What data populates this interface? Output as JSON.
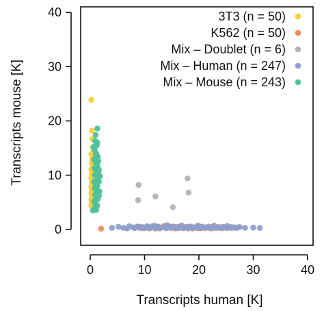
{
  "chart_data": {
    "type": "scatter",
    "title": "",
    "xlabel": "Transcripts human [K]",
    "ylabel": "Transcripts mouse [K]",
    "xlim": [
      0,
      40
    ],
    "ylim": [
      0,
      40
    ],
    "xticks": [
      "0",
      "10",
      "20",
      "30",
      "40"
    ],
    "yticks": [
      "0",
      "10",
      "20",
      "30",
      "40"
    ],
    "grid": false,
    "legend_position": "top-right",
    "series": [
      {
        "name": "3T3 (n = 50)",
        "color": "#f2d13b",
        "points": [
          [
            0.2,
            23.9
          ],
          [
            0.3,
            18.2
          ],
          [
            0.4,
            16.7
          ],
          [
            0.5,
            15.1
          ],
          [
            0.6,
            14.8
          ],
          [
            0.2,
            13.9
          ],
          [
            0.4,
            13.1
          ],
          [
            0.7,
            12.9
          ],
          [
            0.5,
            12.4
          ],
          [
            0.3,
            12.1
          ],
          [
            0.6,
            11.7
          ],
          [
            0.8,
            11.4
          ],
          [
            0.2,
            11.1
          ],
          [
            0.4,
            10.8
          ],
          [
            0.6,
            10.5
          ],
          [
            0.3,
            10.2
          ],
          [
            0.5,
            10.0
          ],
          [
            0.7,
            9.8
          ],
          [
            0.2,
            9.5
          ],
          [
            0.4,
            9.3
          ],
          [
            0.8,
            9.1
          ],
          [
            0.5,
            8.9
          ],
          [
            0.3,
            8.7
          ],
          [
            0.6,
            8.5
          ],
          [
            0.4,
            8.3
          ],
          [
            0.7,
            8.1
          ],
          [
            0.2,
            7.9
          ],
          [
            0.5,
            7.7
          ],
          [
            0.3,
            7.5
          ],
          [
            0.6,
            7.3
          ],
          [
            0.4,
            7.1
          ],
          [
            0.8,
            6.9
          ],
          [
            0.2,
            6.7
          ],
          [
            0.5,
            6.5
          ],
          [
            0.7,
            6.3
          ],
          [
            0.3,
            6.1
          ],
          [
            0.6,
            5.9
          ],
          [
            0.4,
            5.7
          ],
          [
            0.2,
            5.5
          ],
          [
            0.5,
            5.3
          ],
          [
            0.7,
            5.1
          ],
          [
            0.3,
            4.9
          ],
          [
            0.6,
            4.7
          ],
          [
            0.4,
            4.5
          ],
          [
            0.2,
            4.3
          ],
          [
            0.5,
            10.9
          ],
          [
            0.3,
            12.6
          ],
          [
            0.6,
            13.5
          ],
          [
            0.4,
            9.6
          ],
          [
            0.7,
            7.6
          ]
        ]
      },
      {
        "name": "K562 (n = 50)",
        "color": "#f08a5d",
        "points": [
          [
            2.0,
            0.15
          ],
          [
            8.1,
            0.35
          ],
          [
            9.0,
            0.55
          ],
          [
            9.7,
            0.25
          ],
          [
            10.3,
            0.45
          ],
          [
            10.9,
            0.2
          ],
          [
            11.4,
            0.6
          ],
          [
            11.9,
            0.3
          ],
          [
            12.4,
            0.5
          ],
          [
            12.8,
            0.2
          ],
          [
            13.2,
            0.4
          ],
          [
            13.6,
            0.65
          ],
          [
            14.0,
            0.25
          ],
          [
            14.4,
            0.45
          ],
          [
            14.8,
            0.3
          ],
          [
            15.2,
            0.55
          ],
          [
            15.6,
            0.2
          ],
          [
            16.0,
            0.45
          ],
          [
            16.4,
            0.3
          ],
          [
            16.8,
            0.6
          ],
          [
            17.2,
            0.25
          ],
          [
            17.6,
            0.45
          ],
          [
            18.0,
            0.3
          ],
          [
            18.4,
            0.55
          ],
          [
            18.8,
            0.2
          ],
          [
            19.2,
            0.4
          ],
          [
            19.6,
            0.3
          ],
          [
            20.0,
            0.5
          ],
          [
            20.4,
            0.25
          ],
          [
            20.8,
            0.45
          ],
          [
            21.3,
            0.3
          ],
          [
            21.8,
            0.55
          ],
          [
            22.3,
            0.2
          ],
          [
            22.8,
            0.4
          ],
          [
            23.3,
            0.3
          ],
          [
            23.8,
            0.45
          ],
          [
            24.3,
            0.25
          ],
          [
            24.8,
            0.4
          ],
          [
            25.4,
            0.3
          ],
          [
            26.0,
            0.45
          ],
          [
            26.7,
            0.3
          ],
          [
            27.2,
            0.4
          ],
          [
            10.6,
            0.35
          ],
          [
            12.1,
            0.25
          ],
          [
            13.9,
            0.5
          ],
          [
            15.9,
            0.35
          ],
          [
            17.9,
            0.5
          ],
          [
            19.9,
            0.35
          ],
          [
            21.9,
            0.3
          ],
          [
            23.9,
            0.35
          ]
        ]
      },
      {
        "name": "Mix – Doublet (n = 6)",
        "color": "#b3b3b3",
        "points": [
          [
            8.9,
            8.2
          ],
          [
            8.8,
            5.4
          ],
          [
            12.0,
            6.1
          ],
          [
            15.2,
            4.1
          ],
          [
            17.9,
            9.4
          ],
          [
            18.1,
            6.8
          ]
        ]
      },
      {
        "name": "Mix – Human (n = 247)",
        "color": "#8d9fcf",
        "points": [
          [
            4.0,
            0.3
          ],
          [
            5.2,
            0.5
          ],
          [
            6.1,
            0.3
          ],
          [
            6.8,
            0.2
          ],
          [
            7.2,
            0.6
          ],
          [
            7.8,
            0.4
          ],
          [
            8.2,
            0.25
          ],
          [
            8.7,
            0.55
          ],
          [
            9.1,
            0.3
          ],
          [
            9.6,
            0.45
          ],
          [
            10.0,
            0.25
          ],
          [
            10.5,
            0.6
          ],
          [
            11.0,
            0.3
          ],
          [
            11.5,
            0.45
          ],
          [
            12.0,
            0.2
          ],
          [
            12.5,
            0.55
          ],
          [
            13.0,
            0.3
          ],
          [
            13.5,
            0.45
          ],
          [
            14.0,
            0.25
          ],
          [
            14.5,
            0.6
          ],
          [
            15.0,
            0.3
          ],
          [
            15.5,
            0.5
          ],
          [
            16.0,
            0.25
          ],
          [
            16.5,
            0.55
          ],
          [
            17.0,
            0.3
          ],
          [
            17.5,
            0.45
          ],
          [
            18.0,
            0.2
          ],
          [
            18.5,
            0.55
          ],
          [
            19.0,
            0.3
          ],
          [
            19.5,
            0.45
          ],
          [
            20.0,
            0.25
          ],
          [
            20.5,
            0.55
          ],
          [
            21.0,
            0.3
          ],
          [
            21.5,
            0.45
          ],
          [
            22.0,
            0.25
          ],
          [
            22.5,
            0.5
          ],
          [
            23.0,
            0.3
          ],
          [
            23.5,
            0.45
          ],
          [
            24.0,
            0.25
          ],
          [
            24.5,
            0.5
          ],
          [
            25.0,
            0.3
          ],
          [
            25.5,
            0.45
          ],
          [
            26.0,
            0.3
          ],
          [
            26.5,
            0.4
          ],
          [
            27.0,
            0.3
          ],
          [
            27.5,
            0.45
          ],
          [
            28.5,
            0.3
          ],
          [
            30.0,
            0.35
          ],
          [
            31.2,
            0.3
          ],
          [
            14.2,
            0.8
          ],
          [
            16.8,
            0.75
          ],
          [
            19.8,
            0.7
          ],
          [
            11.8,
            0.7
          ],
          [
            22.8,
            0.7
          ],
          [
            25.2,
            0.65
          ]
        ]
      },
      {
        "name": "Mix – Mouse (n = 243)",
        "color": "#4fbf9c",
        "points": [
          [
            1.3,
            18.6
          ],
          [
            1.0,
            17.4
          ],
          [
            0.9,
            16.3
          ],
          [
            1.2,
            15.5
          ],
          [
            0.8,
            14.7
          ],
          [
            1.1,
            14.0
          ],
          [
            1.4,
            13.4
          ],
          [
            0.7,
            12.9
          ],
          [
            1.0,
            12.3
          ],
          [
            1.3,
            11.8
          ],
          [
            0.8,
            11.3
          ],
          [
            1.1,
            10.8
          ],
          [
            1.5,
            10.4
          ],
          [
            0.9,
            10.0
          ],
          [
            1.2,
            9.6
          ],
          [
            1.4,
            9.2
          ],
          [
            0.7,
            8.8
          ],
          [
            1.0,
            8.4
          ],
          [
            1.3,
            8.0
          ],
          [
            0.8,
            7.6
          ],
          [
            1.1,
            7.2
          ],
          [
            1.5,
            6.8
          ],
          [
            0.9,
            6.4
          ],
          [
            1.2,
            6.0
          ],
          [
            1.4,
            5.6
          ],
          [
            0.7,
            5.2
          ],
          [
            1.0,
            4.8
          ],
          [
            1.3,
            4.4
          ],
          [
            0.8,
            4.0
          ],
          [
            1.1,
            3.6
          ],
          [
            1.6,
            11.0
          ],
          [
            1.6,
            8.8
          ],
          [
            1.7,
            7.0
          ],
          [
            1.5,
            12.6
          ],
          [
            1.8,
            9.8
          ],
          [
            1.6,
            6.2
          ],
          [
            1.3,
            16.0
          ],
          [
            0.6,
            15.2
          ],
          [
            0.5,
            3.5
          ],
          [
            1.0,
            13.7
          ]
        ]
      }
    ]
  }
}
